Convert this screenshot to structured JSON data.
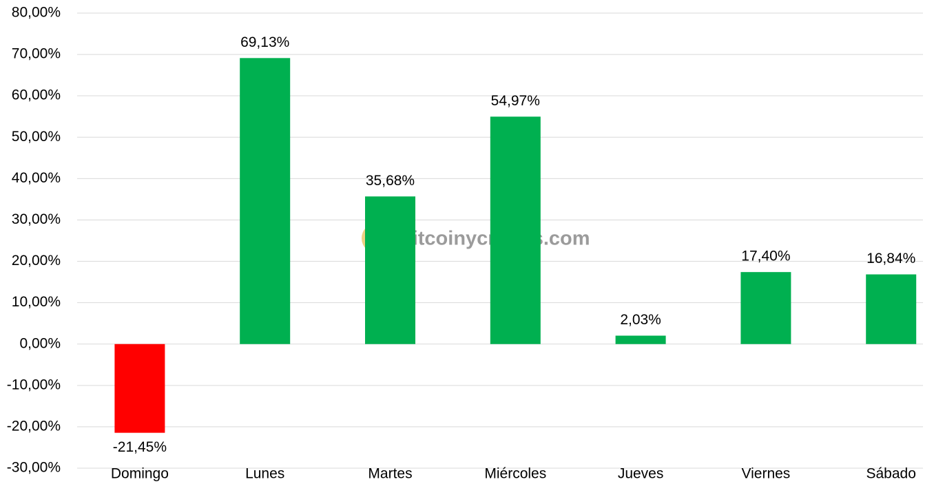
{
  "chart_data": {
    "type": "bar",
    "categories": [
      "Domingo",
      "Lunes",
      "Martes",
      "Miércoles",
      "Jueves",
      "Viernes",
      "Sábado"
    ],
    "values": [
      -21.45,
      69.13,
      35.68,
      54.97,
      2.03,
      17.4,
      16.84
    ],
    "value_labels": [
      "-21,45%",
      "69,13%",
      "35,68%",
      "54,97%",
      "2,03%",
      "17,40%",
      "16,84%"
    ],
    "colors": [
      "#ff0000",
      "#00b050",
      "#00b050",
      "#00b050",
      "#00b050",
      "#00b050",
      "#00b050"
    ],
    "ylim": [
      -30,
      80
    ],
    "yticks": [
      {
        "value": -30,
        "label": "-30,00%"
      },
      {
        "value": -20,
        "label": "-20,00%"
      },
      {
        "value": -10,
        "label": "-10,00%"
      },
      {
        "value": 0,
        "label": "0,00%"
      },
      {
        "value": 10,
        "label": "10,00%"
      },
      {
        "value": 20,
        "label": "20,00%"
      },
      {
        "value": 30,
        "label": "30,00%"
      },
      {
        "value": 40,
        "label": "40,00%"
      },
      {
        "value": 50,
        "label": "50,00%"
      },
      {
        "value": 60,
        "label": "60,00%"
      },
      {
        "value": 70,
        "label": "70,00%"
      },
      {
        "value": 80,
        "label": "80,00%"
      }
    ],
    "grid": true,
    "watermark": "bitcoinycriptos.com"
  }
}
